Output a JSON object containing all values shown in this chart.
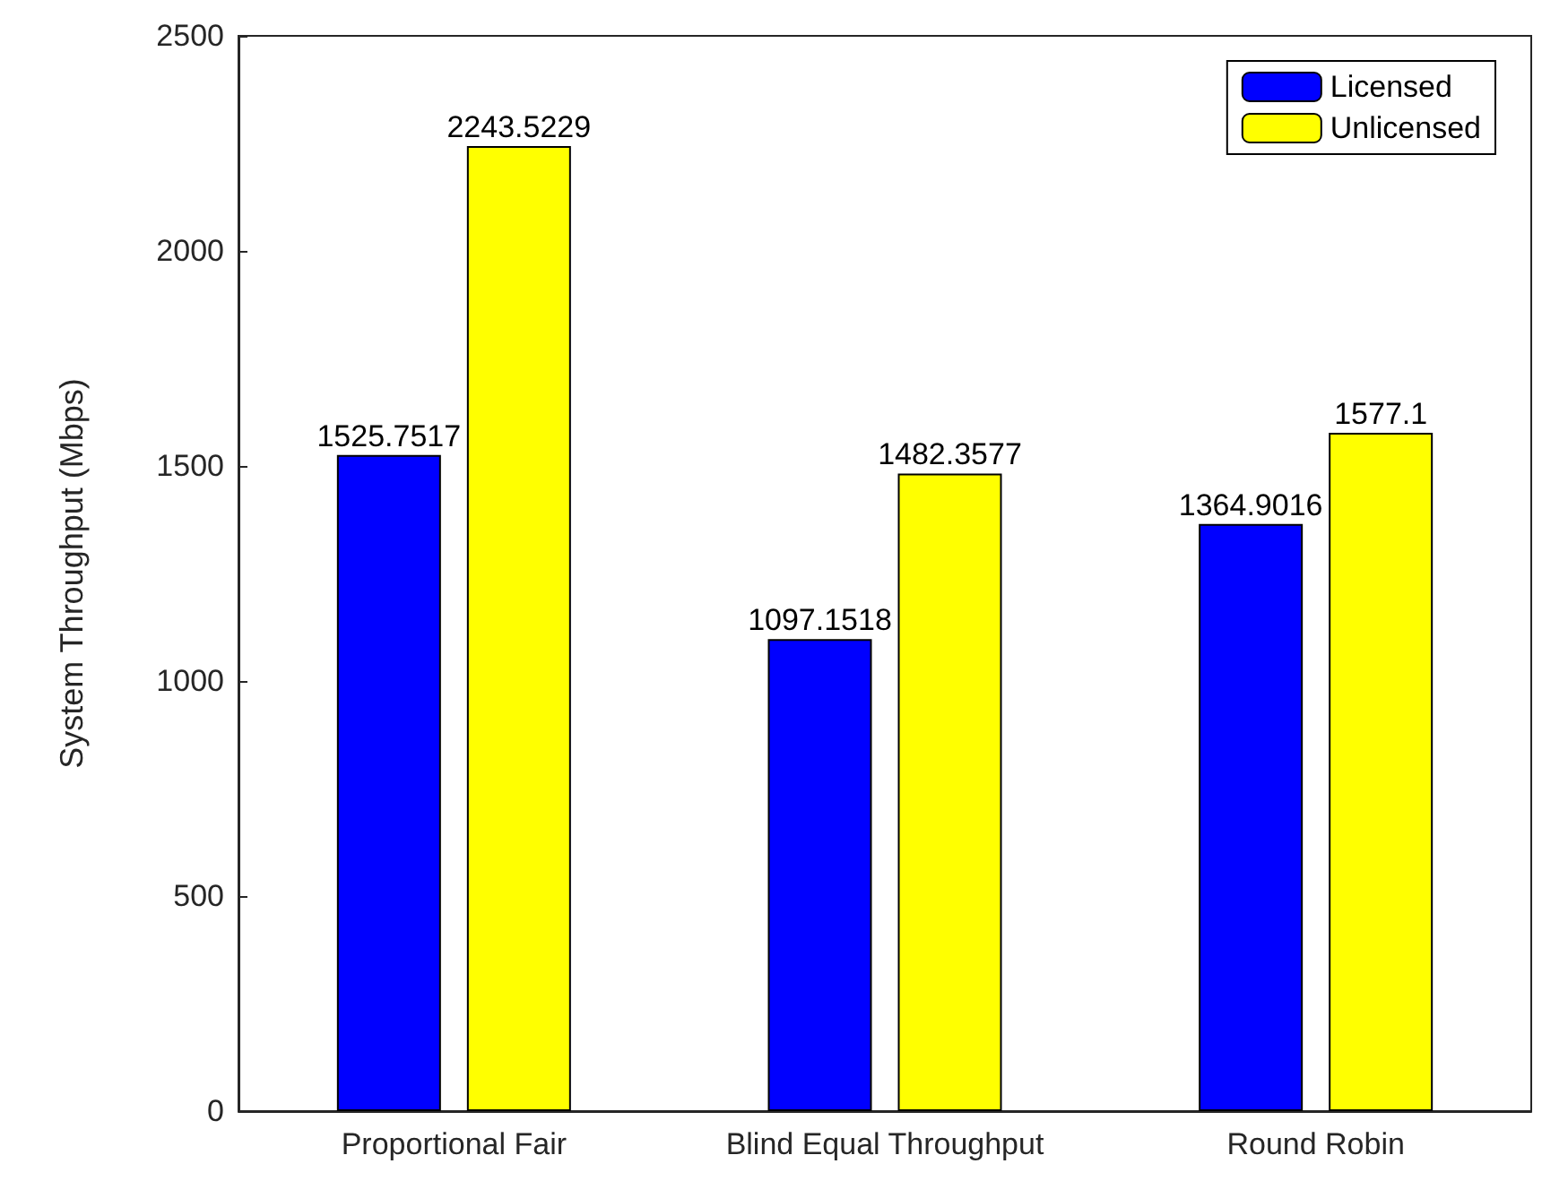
{
  "chart_data": {
    "type": "bar",
    "ylabel": "System Throughput (Mbps)",
    "categories": [
      "Proportional Fair",
      "Blind Equal Throughput",
      "Round Robin"
    ],
    "series": [
      {
        "name": "Licensed",
        "color": "#0000ff",
        "values": [
          1525.7517,
          1097.1518,
          1364.9016
        ]
      },
      {
        "name": "Unlicensed",
        "color": "#ffff00",
        "values": [
          2243.5229,
          1482.3577,
          1577.1
        ]
      }
    ],
    "ylim": [
      0,
      2500
    ],
    "yticks": [
      0,
      500,
      1000,
      1500,
      2000,
      2500
    ],
    "grid": false,
    "legend": "top right",
    "data_labels": true
  }
}
